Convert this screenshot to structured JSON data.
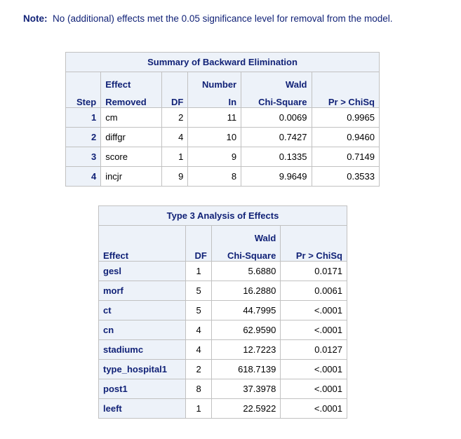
{
  "note": {
    "label": "Note:",
    "text": "No (additional) effects met the 0.05 significance level for removal from the model."
  },
  "backward": {
    "title": "Summary of Backward Elimination",
    "headers": {
      "step": "Step",
      "effect_top": "Effect",
      "effect_bottom": "Removed",
      "df": "DF",
      "number_top": "Number",
      "number_bottom": "In",
      "wald_top": "Wald",
      "wald_bottom": "Chi-Square",
      "p": "Pr > ChiSq"
    },
    "rows": [
      {
        "step": "1",
        "effect": "cm",
        "df": "2",
        "number_in": "11",
        "wald": "0.0069",
        "p": "0.9965"
      },
      {
        "step": "2",
        "effect": "diffgr",
        "df": "4",
        "number_in": "10",
        "wald": "0.7427",
        "p": "0.9460"
      },
      {
        "step": "3",
        "effect": "score",
        "df": "1",
        "number_in": "9",
        "wald": "0.1335",
        "p": "0.7149"
      },
      {
        "step": "4",
        "effect": "incjr",
        "df": "9",
        "number_in": "8",
        "wald": "9.9649",
        "p": "0.3533"
      }
    ]
  },
  "type3": {
    "title": "Type 3 Analysis of Effects",
    "headers": {
      "effect": "Effect",
      "df": "DF",
      "wald_top": "Wald",
      "wald_bottom": "Chi-Square",
      "p": "Pr > ChiSq"
    },
    "rows": [
      {
        "effect": "gesl",
        "df": "1",
        "wald": "5.6880",
        "p": "0.0171"
      },
      {
        "effect": "morf",
        "df": "5",
        "wald": "16.2880",
        "p": "0.0061"
      },
      {
        "effect": "ct",
        "df": "5",
        "wald": "44.7995",
        "p": "<.0001"
      },
      {
        "effect": "cn",
        "df": "4",
        "wald": "62.9590",
        "p": "<.0001"
      },
      {
        "effect": "stadiumc",
        "df": "4",
        "wald": "12.7223",
        "p": "0.0127"
      },
      {
        "effect": "type_hospital1",
        "df": "2",
        "wald": "618.7139",
        "p": "<.0001"
      },
      {
        "effect": "post1",
        "df": "8",
        "wald": "37.3978",
        "p": "<.0001"
      },
      {
        "effect": "leeft",
        "df": "1",
        "wald": "22.5922",
        "p": "<.0001"
      }
    ]
  },
  "colors": {
    "header_bg": "#edf2f9",
    "header_text": "#112277",
    "border": "#c1c1c1"
  }
}
